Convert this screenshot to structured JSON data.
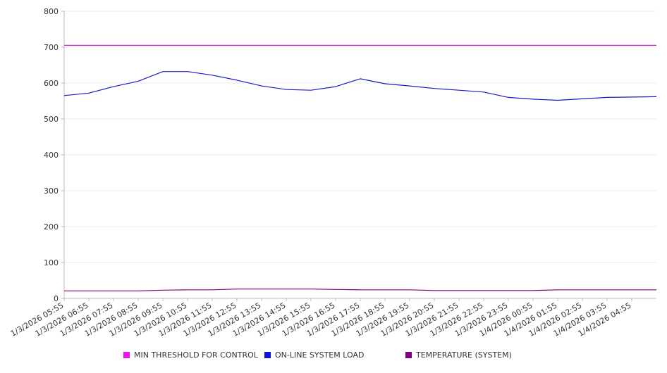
{
  "chart_data": {
    "type": "line",
    "title": "",
    "xlabel": "",
    "ylabel": "",
    "ylim": [
      0,
      800
    ],
    "yticks": [
      0,
      100,
      200,
      300,
      400,
      500,
      600,
      700,
      800
    ],
    "grid": true,
    "legend_position": "bottom",
    "x": [
      "1/3/2026 05:55",
      "1/3/2026 06:55",
      "1/3/2026 07:55",
      "1/3/2026 08:55",
      "1/3/2026 09:55",
      "1/3/2026 10:55",
      "1/3/2026 11:55",
      "1/3/2026 12:55",
      "1/3/2026 13:55",
      "1/3/2026 14:55",
      "1/3/2026 15:55",
      "1/3/2026 16:55",
      "1/3/2026 17:55",
      "1/3/2026 18:55",
      "1/3/2026 19:55",
      "1/3/2026 20:55",
      "1/3/2026 21:55",
      "1/3/2026 22:55",
      "1/3/2026 23:55",
      "1/4/2026 00:55",
      "1/4/2026 01:55",
      "1/4/2026 02:55",
      "1/4/2026 03:55",
      "1/4/2026 04:55"
    ],
    "series": [
      {
        "name": "MIN THRESHOLD FOR CONTROL",
        "color": "#cc22cc",
        "values": [
          705,
          705,
          705,
          705,
          705,
          705,
          705,
          705,
          705,
          705,
          705,
          705,
          705,
          705,
          705,
          705,
          705,
          705,
          705,
          705,
          705,
          705,
          705,
          705
        ]
      },
      {
        "name": "ON-LINE SYSTEM LOAD",
        "color": "#1a1acc",
        "values": [
          565,
          572,
          590,
          605,
          632,
          632,
          622,
          608,
          592,
          582,
          580,
          590,
          612,
          598,
          592,
          585,
          580,
          575,
          560,
          555,
          552,
          556,
          560,
          562
        ]
      },
      {
        "name": "TEMPERATURE (SYSTEM)",
        "color": "#800080",
        "values": [
          21,
          21,
          21,
          21,
          23,
          24,
          24,
          26,
          26,
          26,
          26,
          25,
          24,
          24,
          24,
          22,
          22,
          22,
          22,
          22,
          24,
          24,
          24,
          24
        ]
      }
    ]
  }
}
